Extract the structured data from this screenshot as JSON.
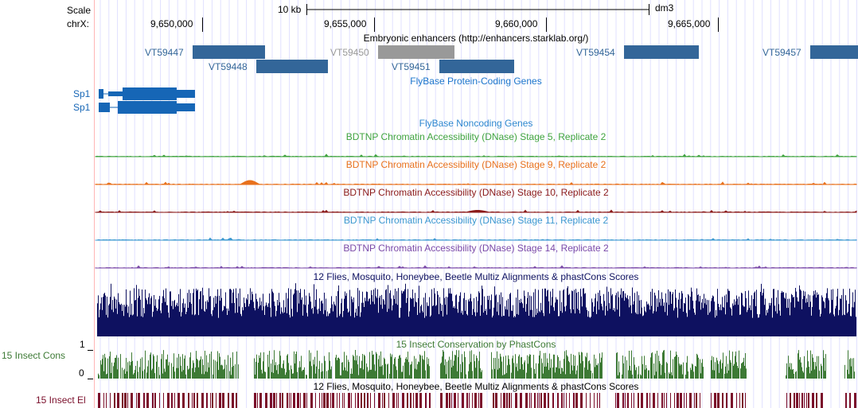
{
  "browser": {
    "scale_label": "Scale",
    "scale_text": "10 kb",
    "assembly": "dm3",
    "chrom_label": "chrX:",
    "positions": [
      "9,650,000",
      "9,655,000",
      "9,660,000",
      "9,665,000"
    ]
  },
  "colors": {
    "left_margin_line": "#ffb6b6",
    "grid_line": "#e0e0ff",
    "enhancer": "#336699",
    "enhancer_gray": "#999999",
    "gene": "#1666b6",
    "gene_header": "#1b74cc",
    "noncoding_header": "#2d87cf",
    "dnase_stage5": "#3fa33f",
    "dnase_stage9": "#e8711d",
    "dnase_stage10": "#8b1a1a",
    "dnase_stage11": "#3c98d0",
    "dnase_stage14": "#7b4aa8",
    "multiz": "#0e1160",
    "cons": "#3d7a35",
    "cons_elements": "#7a0e2a"
  },
  "tracks": {
    "enhancers": {
      "title": "Embryonic enhancers (http://enhancers.starklab.org/)",
      "items": [
        {
          "name": "VT59447",
          "shade": "dark"
        },
        {
          "name": "VT59448",
          "shade": "dark"
        },
        {
          "name": "VT59450",
          "shade": "gray"
        },
        {
          "name": "VT59451",
          "shade": "dark"
        },
        {
          "name": "VT59454",
          "shade": "dark"
        },
        {
          "name": "VT59457",
          "shade": "dark"
        }
      ]
    },
    "genes": {
      "title": "FlyBase Protein-Coding Genes",
      "items": [
        {
          "name": "Sp1"
        },
        {
          "name": "Sp1"
        }
      ]
    },
    "noncoding": {
      "title": "FlyBase Noncoding Genes"
    },
    "dnase": [
      {
        "title": "BDTNP Chromatin Accessibility (DNase) Stage 5, Replicate 2"
      },
      {
        "title": "BDTNP Chromatin Accessibility (DNase) Stage 9, Replicate 2"
      },
      {
        "title": "BDTNP Chromatin Accessibility (DNase) Stage 10, Replicate 2"
      },
      {
        "title": "BDTNP Chromatin Accessibility (DNase) Stage 11, Replicate 2"
      },
      {
        "title": "BDTNP Chromatin Accessibility (DNase) Stage 14, Replicate 2"
      }
    ],
    "multiz": {
      "title": "12 Flies, Mosquito, Honeybee, Beetle Multiz Alignments & phastCons Scores"
    },
    "conservation": {
      "title": "15 Insect Conservation by PhastCons",
      "side_label": "15 Insect Cons",
      "axis_max": "1",
      "axis_min": "0"
    },
    "cons_elements": {
      "title": "12 Flies, Mosquito, Honeybee, Beetle Multiz Alignments & phastCons Scores",
      "side_label": "15 Insect El"
    }
  }
}
